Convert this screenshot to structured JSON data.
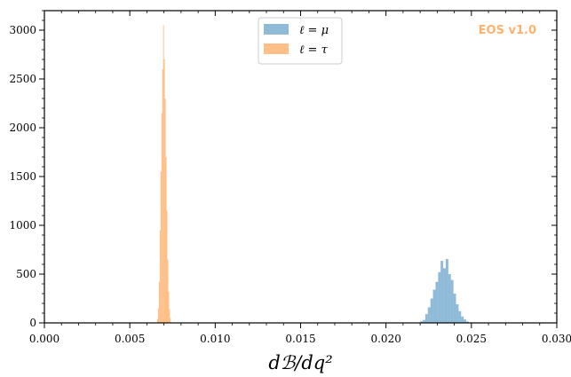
{
  "chart_data": {
    "type": "bar",
    "xlabel": "dℬ/dq²",
    "ylabel": "",
    "xlim": [
      0.0,
      0.03
    ],
    "ylim": [
      0,
      3200
    ],
    "x_ticks": [
      "0.000",
      "0.005",
      "0.010",
      "0.015",
      "0.020",
      "0.025",
      "0.030"
    ],
    "x_tick_values": [
      0.0,
      0.005,
      0.01,
      0.015,
      0.02,
      0.025,
      0.03
    ],
    "y_ticks": [
      "0",
      "500",
      "1000",
      "1500",
      "2000",
      "2500",
      "3000"
    ],
    "y_tick_values": [
      0,
      500,
      1000,
      1500,
      2000,
      2500,
      3000
    ],
    "watermark": "EOS v1.0",
    "legend_position": "top-center",
    "series": [
      {
        "name": "ℓ = μ",
        "color": "#1f77b4",
        "opacity": 0.5,
        "bins": [
          {
            "x": 0.022,
            "w": 0.00015,
            "v": 15
          },
          {
            "x": 0.02215,
            "w": 0.00015,
            "v": 30
          },
          {
            "x": 0.0223,
            "w": 0.00015,
            "v": 90
          },
          {
            "x": 0.02245,
            "w": 0.00015,
            "v": 160
          },
          {
            "x": 0.0226,
            "w": 0.00015,
            "v": 250
          },
          {
            "x": 0.02275,
            "w": 0.00015,
            "v": 340
          },
          {
            "x": 0.0229,
            "w": 0.00015,
            "v": 420
          },
          {
            "x": 0.02305,
            "w": 0.00015,
            "v": 520
          },
          {
            "x": 0.0232,
            "w": 0.00015,
            "v": 635
          },
          {
            "x": 0.02335,
            "w": 0.00015,
            "v": 560
          },
          {
            "x": 0.0235,
            "w": 0.00015,
            "v": 655
          },
          {
            "x": 0.02365,
            "w": 0.00015,
            "v": 500
          },
          {
            "x": 0.0238,
            "w": 0.00015,
            "v": 440
          },
          {
            "x": 0.02395,
            "w": 0.00015,
            "v": 300
          },
          {
            "x": 0.0241,
            "w": 0.00015,
            "v": 190
          },
          {
            "x": 0.02425,
            "w": 0.00015,
            "v": 120
          },
          {
            "x": 0.0244,
            "w": 0.00015,
            "v": 65
          },
          {
            "x": 0.02455,
            "w": 0.00015,
            "v": 35
          },
          {
            "x": 0.0247,
            "w": 0.00015,
            "v": 15
          }
        ]
      },
      {
        "name": "ℓ = τ",
        "color": "#ff7f0e",
        "opacity": 0.5,
        "bins": [
          {
            "x": 0.0066,
            "w": 5e-05,
            "v": 40
          },
          {
            "x": 0.00665,
            "w": 5e-05,
            "v": 150
          },
          {
            "x": 0.0067,
            "w": 5e-05,
            "v": 420
          },
          {
            "x": 0.00675,
            "w": 5e-05,
            "v": 950
          },
          {
            "x": 0.0068,
            "w": 5e-05,
            "v": 1550
          },
          {
            "x": 0.00685,
            "w": 5e-05,
            "v": 2150
          },
          {
            "x": 0.0069,
            "w": 5e-05,
            "v": 2600
          },
          {
            "x": 0.00695,
            "w": 5e-05,
            "v": 3050
          },
          {
            "x": 0.007,
            "w": 5e-05,
            "v": 2700
          },
          {
            "x": 0.00705,
            "w": 5e-05,
            "v": 2300
          },
          {
            "x": 0.0071,
            "w": 5e-05,
            "v": 1700
          },
          {
            "x": 0.00715,
            "w": 5e-05,
            "v": 1150
          },
          {
            "x": 0.0072,
            "w": 5e-05,
            "v": 650
          },
          {
            "x": 0.00725,
            "w": 5e-05,
            "v": 320
          },
          {
            "x": 0.0073,
            "w": 5e-05,
            "v": 140
          },
          {
            "x": 0.00735,
            "w": 5e-05,
            "v": 50
          }
        ]
      }
    ]
  }
}
